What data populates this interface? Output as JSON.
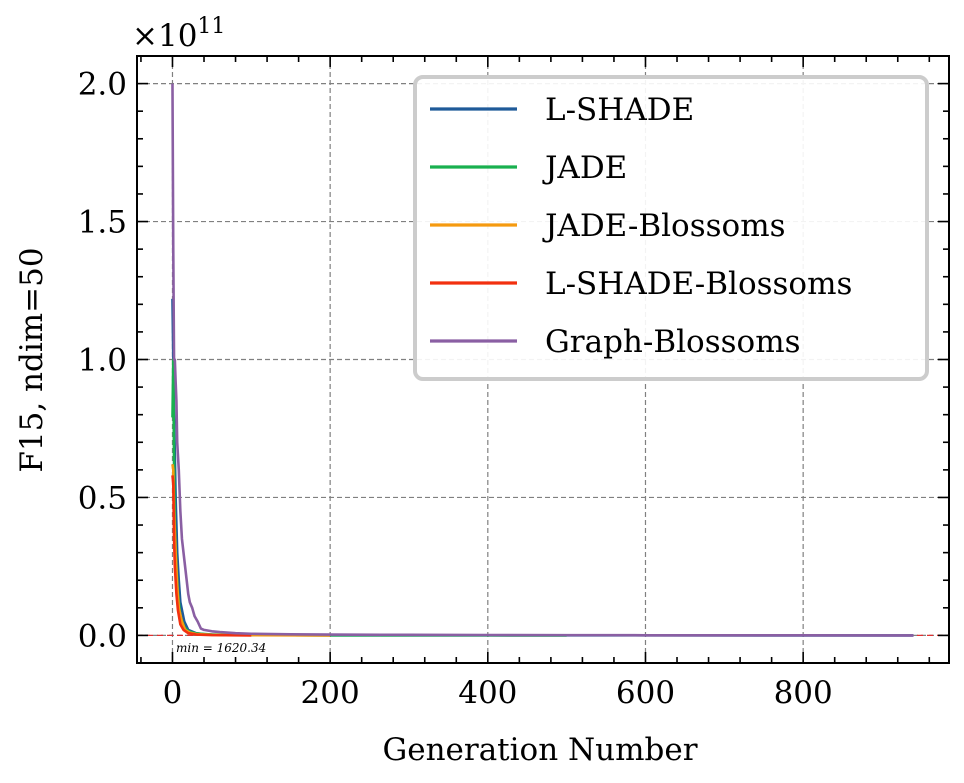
{
  "chart_data": {
    "type": "line",
    "xlabel": "Generation Number",
    "ylabel": "F15, ndim=50",
    "y_multiplier": "×10",
    "y_multiplier_exp": "11",
    "xlim": [
      -45,
      985
    ],
    "ylim": [
      -0.1,
      2.1
    ],
    "xticks": [
      0,
      200,
      400,
      600,
      800
    ],
    "xtick_labels": [
      "0",
      "200",
      "400",
      "600",
      "800"
    ],
    "yticks": [
      0.0,
      0.5,
      1.0,
      1.5,
      2.0
    ],
    "ytick_labels": [
      "0.0",
      "0.5",
      "1.0",
      "1.5",
      "2.0"
    ],
    "grid": true,
    "legend_position": "top-right",
    "annotation": "min = 1620.34",
    "min_line_value": 0.0,
    "series": [
      {
        "name": "L-SHADE",
        "color": "#1f5a99",
        "x": [
          0,
          2,
          4,
          6,
          8,
          10,
          15,
          20,
          30,
          40,
          60,
          100,
          200,
          400,
          600,
          800,
          940
        ],
        "y": [
          1.22,
          0.8,
          0.5,
          0.3,
          0.2,
          0.12,
          0.05,
          0.02,
          0.008,
          0.004,
          0.002,
          0.001,
          0.0005,
          0.0002,
          0.0001,
          5e-05,
          0.0
        ]
      },
      {
        "name": "JADE",
        "color": "#19b04f",
        "x": [
          0,
          1,
          2,
          3,
          5,
          7,
          10,
          15,
          20,
          30,
          50,
          100,
          200,
          300,
          400,
          500
        ],
        "y": [
          0.79,
          1.0,
          0.62,
          0.4,
          0.25,
          0.15,
          0.07,
          0.03,
          0.015,
          0.007,
          0.003,
          0.001,
          0.0005,
          0.0002,
          0.0001,
          0.0
        ]
      },
      {
        "name": "JADE-Blossoms",
        "color": "#f59a10",
        "x": [
          0,
          1,
          2,
          4,
          6,
          8,
          12,
          16,
          22,
          30,
          50,
          100,
          200
        ],
        "y": [
          0.62,
          0.6,
          0.45,
          0.3,
          0.18,
          0.1,
          0.05,
          0.02,
          0.01,
          0.005,
          0.002,
          0.001,
          0.0
        ]
      },
      {
        "name": "L-SHADE-Blossoms",
        "color": "#f2300f",
        "x": [
          0,
          1,
          2,
          3,
          5,
          7,
          10,
          14,
          20,
          30,
          50,
          100
        ],
        "y": [
          0.58,
          0.55,
          0.35,
          0.25,
          0.15,
          0.09,
          0.04,
          0.02,
          0.008,
          0.003,
          0.001,
          0.0
        ]
      },
      {
        "name": "Graph-Blossoms",
        "color": "#8a5fa3",
        "x": [
          0,
          1,
          2,
          3,
          4,
          5,
          6,
          8,
          10,
          12,
          14,
          16,
          18,
          20,
          22,
          25,
          28,
          32,
          36,
          40,
          50,
          60,
          80,
          100,
          150,
          200,
          300,
          400,
          500,
          550,
          600,
          700,
          800,
          940
        ],
        "y": [
          2.0,
          1.4,
          1.0,
          1.0,
          0.92,
          0.85,
          0.7,
          0.6,
          0.45,
          0.35,
          0.3,
          0.25,
          0.2,
          0.15,
          0.12,
          0.1,
          0.07,
          0.05,
          0.025,
          0.02,
          0.015,
          0.012,
          0.008,
          0.006,
          0.004,
          0.003,
          0.002,
          0.0015,
          0.001,
          0.001,
          0.0005,
          0.0003,
          0.0002,
          0.0
        ]
      }
    ]
  }
}
